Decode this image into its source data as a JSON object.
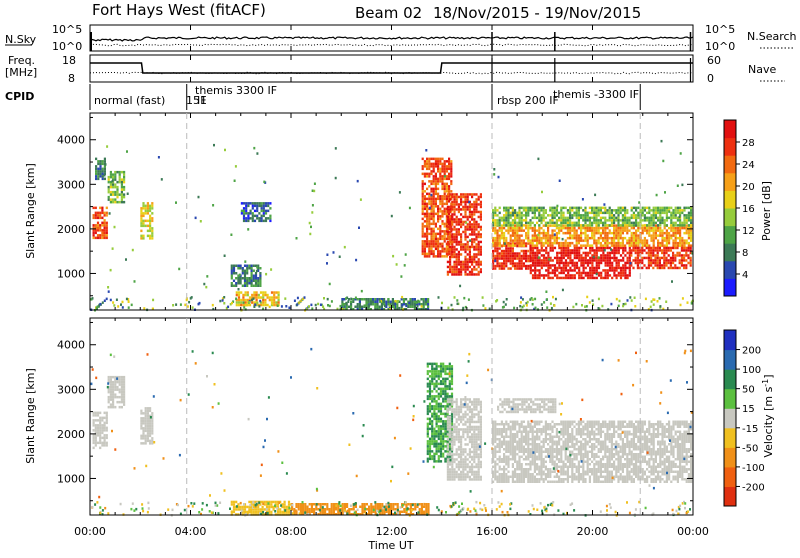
{
  "header": {
    "radar": "Fort Hays West (fitACF)",
    "beam": "Beam 02",
    "date_range": "18/Nov/2015 - 19/Nov/2015"
  },
  "noise_panel": {
    "left_label": "N.Sky",
    "left_ticks": [
      "10^5",
      "10^0"
    ],
    "right_ticks": [
      "10^5",
      "10^0"
    ],
    "right_label": "N.Search"
  },
  "freq_panel": {
    "label_line1": "Freq.",
    "label_line2": "[MHz]",
    "left_ticks": [
      "18",
      "8"
    ],
    "right_ticks": [
      "60",
      "0"
    ],
    "right_label": "Nave"
  },
  "cpid": {
    "label": "CPID",
    "modes": [
      {
        "name": "normal (fast)",
        "start_hour": 0.0
      },
      {
        "name": "151",
        "start_hour": 3.55
      },
      {
        "name": "themis 3300 IF",
        "start_hour": 3.85
      },
      {
        "name": "IF",
        "start_hour": 5.15
      },
      {
        "name": "rbsp 200 IF",
        "start_hour": 16.0
      },
      {
        "name": "themis -3300 IF",
        "start_hour": 18.5
      }
    ],
    "boundaries_hours": [
      3.85,
      16.0,
      21.9
    ]
  },
  "time_axis": {
    "label": "Time UT",
    "ticks": [
      "00:00",
      "04:00",
      "08:00",
      "12:00",
      "16:00",
      "20:00",
      "00:00"
    ],
    "range_hours": [
      0,
      24
    ]
  },
  "power_panel": {
    "ylabel": "Slant Range [km]",
    "yticks": [
      "1000",
      "2000",
      "3000",
      "4000"
    ],
    "yrange_km": [
      180,
      4600
    ],
    "colorbar_label": "Power [dB]",
    "colorbar_ticks": [
      "4",
      "8",
      "12",
      "16",
      "20",
      "24",
      "28"
    ],
    "colorbar_colors": [
      "#1c1cff",
      "#2a48b0",
      "#3c7a56",
      "#4ea446",
      "#96cc3c",
      "#e8d018",
      "#f6a018",
      "#f26a10",
      "#ee3010",
      "#e21010"
    ]
  },
  "velocity_panel": {
    "ylabel": "Slant Range [km]",
    "yticks": [
      "1000",
      "2000",
      "3000",
      "4000"
    ],
    "yrange_km": [
      180,
      4600
    ],
    "colorbar_label": "Velocity [m s^-1]",
    "colorbar_ticks": [
      "200",
      "100",
      "50",
      "15",
      "-15",
      "-50",
      "-100",
      "-200"
    ],
    "colorbar_colors": [
      "#2030c0",
      "#2a6ab0",
      "#2a8a50",
      "#5cc040",
      "#c8c8c0",
      "#f0c020",
      "#f09018",
      "#f06010",
      "#e03010"
    ]
  },
  "chart_data": {
    "type": "heatmap",
    "x_unit": "hours UT",
    "y_unit": "km",
    "power_regions": [
      {
        "t0": 0.1,
        "t1": 0.7,
        "r0": 1800,
        "r1": 2500,
        "db": 24
      },
      {
        "t0": 0.7,
        "t1": 1.4,
        "r0": 2600,
        "r1": 3300,
        "db": 12
      },
      {
        "t0": 2.0,
        "t1": 2.5,
        "r0": 1800,
        "r1": 2600,
        "db": 16
      },
      {
        "t0": 0.2,
        "t1": 0.6,
        "r0": 3100,
        "r1": 3600,
        "db": 8
      },
      {
        "t0": 5.6,
        "t1": 6.8,
        "r0": 700,
        "r1": 1200,
        "db": 8
      },
      {
        "t0": 5.8,
        "t1": 7.5,
        "r0": 300,
        "r1": 600,
        "db": 18
      },
      {
        "t0": 6.0,
        "t1": 7.2,
        "r0": 2200,
        "r1": 2600,
        "db": 6
      },
      {
        "t0": 10.0,
        "t1": 13.5,
        "r0": 200,
        "r1": 450,
        "db": 8
      },
      {
        "t0": 13.2,
        "t1": 14.4,
        "r0": 1400,
        "r1": 3600,
        "db": 24
      },
      {
        "t0": 14.2,
        "t1": 15.6,
        "r0": 1000,
        "r1": 2800,
        "db": 26
      },
      {
        "t0": 16.0,
        "t1": 17.5,
        "r0": 1100,
        "r1": 1700,
        "db": 27
      },
      {
        "t0": 17.5,
        "t1": 21.5,
        "r0": 900,
        "r1": 1600,
        "db": 28
      },
      {
        "t0": 16.0,
        "t1": 23.9,
        "r0": 1600,
        "r1": 2100,
        "db": 20
      },
      {
        "t0": 16.0,
        "t1": 23.9,
        "r0": 2100,
        "r1": 2500,
        "db": 12
      },
      {
        "t0": 21.5,
        "t1": 23.9,
        "r0": 1100,
        "r1": 1600,
        "db": 26
      }
    ],
    "velocity_regions": [
      {
        "t0": 0.1,
        "t1": 0.7,
        "r0": 1700,
        "r1": 2500,
        "v": 0
      },
      {
        "t0": 0.7,
        "t1": 1.4,
        "r0": 2600,
        "r1": 3300,
        "v": 0
      },
      {
        "t0": 2.0,
        "t1": 2.5,
        "r0": 1800,
        "r1": 2600,
        "v": 0
      },
      {
        "t0": 5.6,
        "t1": 8.0,
        "r0": 200,
        "r1": 500,
        "v": -40
      },
      {
        "t0": 8.0,
        "t1": 13.5,
        "r0": 200,
        "r1": 450,
        "v": -70
      },
      {
        "t0": 13.4,
        "t1": 14.4,
        "r0": 1400,
        "r1": 3600,
        "v": 30
      },
      {
        "t0": 14.2,
        "t1": 15.6,
        "r0": 1000,
        "r1": 2800,
        "v": 0
      },
      {
        "t0": 16.0,
        "t1": 23.9,
        "r0": 900,
        "r1": 2300,
        "v": 0
      },
      {
        "t0": 16.2,
        "t1": 18.5,
        "r0": 2500,
        "r1": 2800,
        "v": 0
      }
    ]
  }
}
